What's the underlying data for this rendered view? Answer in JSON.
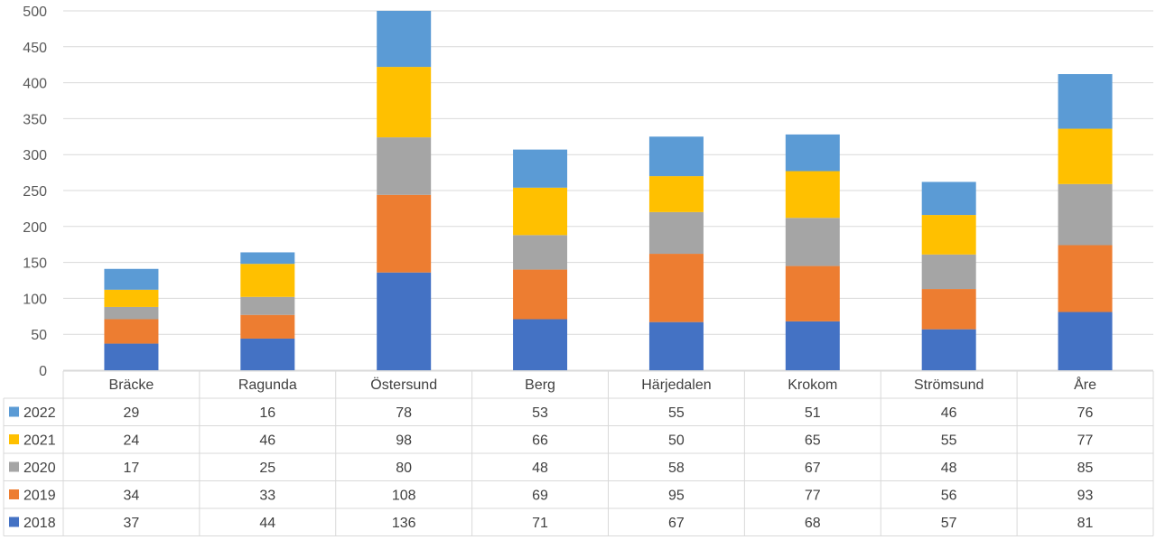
{
  "chart_data": {
    "type": "bar",
    "stacked": true,
    "categories": [
      "Bräcke",
      "Ragunda",
      "Östersund",
      "Berg",
      "Härjedalen",
      "Krokom",
      "Strömsund",
      "Åre"
    ],
    "series": [
      {
        "name": "2018",
        "color": "#4472c4",
        "values": [
          37,
          44,
          136,
          71,
          67,
          68,
          57,
          81
        ]
      },
      {
        "name": "2019",
        "color": "#ed7d31",
        "values": [
          34,
          33,
          108,
          69,
          95,
          77,
          56,
          93
        ]
      },
      {
        "name": "2020",
        "color": "#a5a5a5",
        "values": [
          17,
          25,
          80,
          48,
          58,
          67,
          48,
          85
        ]
      },
      {
        "name": "2021",
        "color": "#ffc000",
        "values": [
          24,
          46,
          98,
          66,
          50,
          65,
          55,
          77
        ]
      },
      {
        "name": "2022",
        "color": "#5b9bd5",
        "values": [
          29,
          16,
          78,
          53,
          55,
          51,
          46,
          76
        ]
      }
    ],
    "y_ticks": [
      "0",
      "50",
      "100",
      "150",
      "200",
      "250",
      "300",
      "350",
      "400",
      "450",
      "500"
    ],
    "ylim": [
      0,
      500
    ],
    "grid": true,
    "legend": "data-table",
    "data_table_row_order": [
      "2022",
      "2021",
      "2020",
      "2019",
      "2018"
    ]
  }
}
